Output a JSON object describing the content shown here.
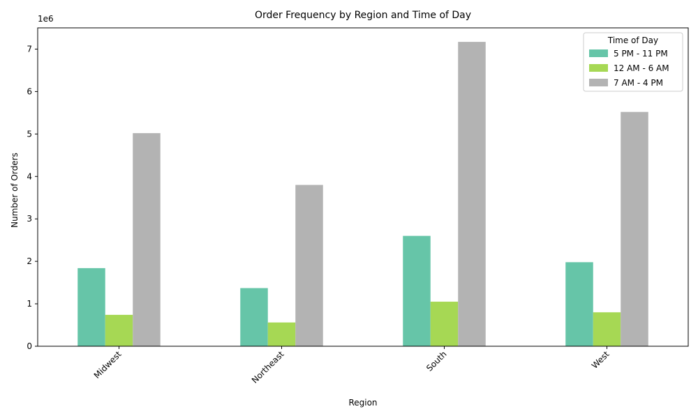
{
  "chart_data": {
    "type": "bar",
    "title": "Order Frequency by Region and Time of Day",
    "xlabel": "Region",
    "ylabel": "Number of Orders",
    "y_scale_label": "1e6",
    "y_multiplier": 1000000,
    "ylim": [
      0,
      7.5
    ],
    "yticks": [
      "0",
      "1",
      "2",
      "3",
      "4",
      "5",
      "6",
      "7"
    ],
    "categories": [
      "Midwest",
      "Northeast",
      "South",
      "West"
    ],
    "series": [
      {
        "name": "5 PM - 11 PM",
        "color": "#66c5a8",
        "values": [
          1.84,
          1.37,
          2.6,
          1.98
        ]
      },
      {
        "name": "12 AM - 6 AM",
        "color": "#a6d854",
        "values": [
          0.74,
          0.56,
          1.05,
          0.8
        ]
      },
      {
        "name": "7 AM - 4 PM",
        "color": "#b3b3b3",
        "values": [
          5.02,
          3.8,
          7.17,
          5.52
        ]
      }
    ],
    "legend": {
      "title": "Time of Day",
      "position": "top-right"
    },
    "grid": false
  }
}
